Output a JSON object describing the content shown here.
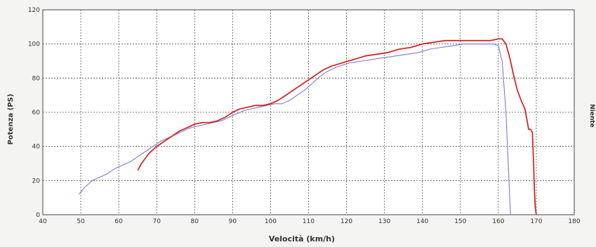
{
  "chart_data": {
    "type": "line",
    "xlabel": "Velocità (km/h)",
    "ylabel": "Potenza (PS)",
    "right_label": "Niente",
    "xlim": [
      40,
      180
    ],
    "ylim": [
      0,
      120
    ],
    "x_ticks": [
      40,
      50,
      60,
      70,
      80,
      90,
      100,
      110,
      120,
      130,
      140,
      150,
      160,
      170,
      180
    ],
    "y_ticks": [
      0,
      20,
      40,
      60,
      80,
      100,
      120
    ],
    "grid": true,
    "series": [
      {
        "color": "#7b7bd6",
        "x": [
          49.5,
          51,
          53,
          55,
          57,
          59,
          61,
          63,
          65,
          67,
          69,
          71,
          73,
          75,
          77,
          79,
          81,
          83,
          85,
          87,
          89,
          91,
          93,
          95,
          97,
          99,
          101,
          103,
          105,
          107,
          109,
          111,
          113,
          115,
          118,
          121,
          124,
          127,
          130,
          133,
          136,
          139,
          142,
          145,
          148,
          151,
          154,
          157,
          159,
          160,
          161,
          162,
          162.5,
          163,
          163.2
        ],
        "y": [
          12,
          16,
          20,
          22,
          24,
          27,
          29,
          31,
          34,
          37,
          40,
          43,
          45,
          47,
          49,
          51,
          52,
          53,
          54,
          55,
          57,
          59,
          61,
          62,
          63,
          64,
          65,
          65,
          67,
          70,
          73,
          77,
          81,
          84,
          87,
          89,
          90,
          91,
          92,
          93,
          94,
          95,
          97,
          98,
          99,
          100,
          100,
          100,
          100,
          99,
          90,
          60,
          35,
          10,
          0
        ]
      },
      {
        "color": "#d42828",
        "x": [
          65,
          66,
          68,
          70,
          72,
          74,
          76,
          78,
          80,
          82,
          84,
          86,
          88,
          90,
          92,
          94,
          96,
          98,
          100,
          102,
          104,
          106,
          108,
          110,
          112,
          114,
          116,
          119,
          122,
          125,
          128,
          131,
          134,
          137,
          140,
          143,
          146,
          149,
          152,
          155,
          158,
          160,
          161,
          162,
          163,
          164,
          165,
          166,
          167,
          167.5,
          168,
          168.5,
          169,
          169.3,
          169.5,
          169.7,
          170
        ],
        "y": [
          26,
          30,
          36,
          40,
          43,
          46,
          49,
          51,
          53,
          54,
          54,
          55,
          57,
          60,
          62,
          63,
          64,
          64,
          65,
          67,
          70,
          73,
          76,
          79,
          82,
          85,
          87,
          89,
          91,
          93,
          94,
          95,
          97,
          98,
          100,
          101,
          102,
          102,
          102,
          102,
          102,
          103,
          103,
          100,
          92,
          82,
          73,
          67,
          62,
          56,
          50,
          50,
          48,
          30,
          15,
          5,
          0
        ]
      }
    ]
  }
}
